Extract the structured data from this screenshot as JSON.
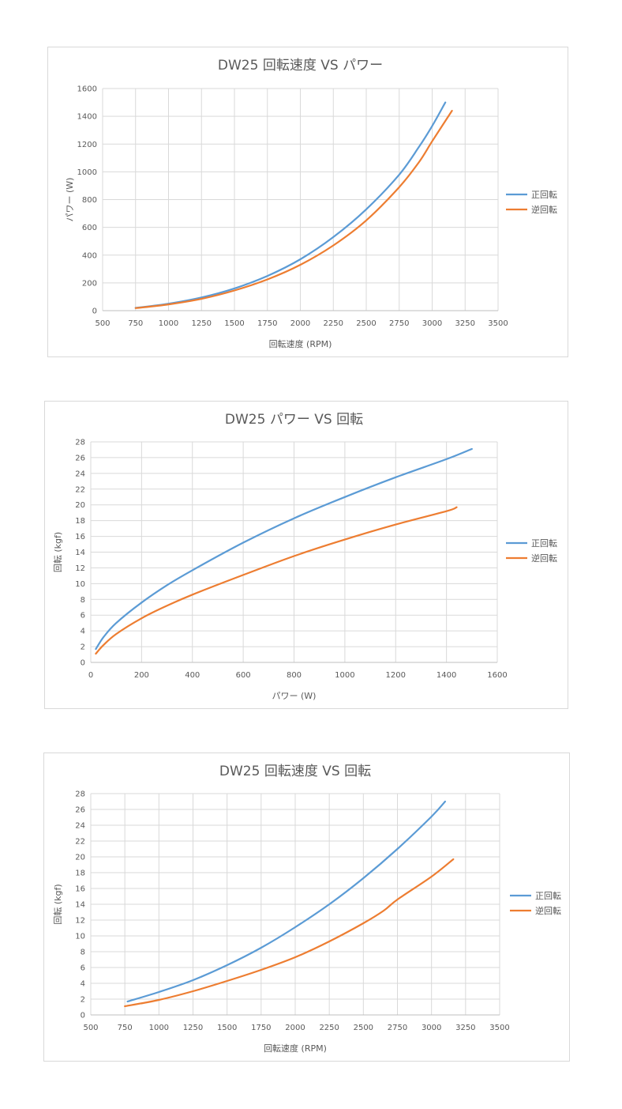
{
  "colors": {
    "series_blue": "#5B9BD5",
    "series_orange": "#ED7D31",
    "grid": "#d9d9d9",
    "text": "#595959"
  },
  "chart_data": [
    {
      "type": "line",
      "title": "DW25 回転速度 VS パワー",
      "xlabel": "回転速度 (RPM)",
      "ylabel": "パワー (W)",
      "xlim": [
        500,
        3500
      ],
      "ylim": [
        0,
        1600
      ],
      "xticks": [
        "500",
        "750",
        "1000",
        "1250",
        "1500",
        "1750",
        "2000",
        "2250",
        "2500",
        "2750",
        "3000",
        "3250",
        "3500"
      ],
      "yticks": [
        "0",
        "200",
        "400",
        "600",
        "800",
        "1000",
        "1200",
        "1400",
        "1600"
      ],
      "grid": true,
      "legend": "right",
      "series": [
        {
          "name": "正回転",
          "color": "#5B9BD5",
          "points": [
            [
              750,
              20
            ],
            [
              1000,
              50
            ],
            [
              1250,
              95
            ],
            [
              1500,
              160
            ],
            [
              1750,
              250
            ],
            [
              2000,
              370
            ],
            [
              2250,
              530
            ],
            [
              2500,
              730
            ],
            [
              2750,
              980
            ],
            [
              2900,
              1180
            ],
            [
              3000,
              1330
            ],
            [
              3100,
              1500
            ]
          ]
        },
        {
          "name": "逆回転",
          "color": "#ED7D31",
          "points": [
            [
              750,
              18
            ],
            [
              1000,
              45
            ],
            [
              1250,
              85
            ],
            [
              1500,
              145
            ],
            [
              1750,
              225
            ],
            [
              2000,
              330
            ],
            [
              2250,
              470
            ],
            [
              2500,
              650
            ],
            [
              2750,
              890
            ],
            [
              2900,
              1070
            ],
            [
              3000,
              1220
            ],
            [
              3150,
              1440
            ]
          ]
        }
      ]
    },
    {
      "type": "line",
      "title": "DW25 パワー VS 回転",
      "xlabel": "パワー (W)",
      "ylabel": "回転 (kgf)",
      "xlim": [
        0,
        1600
      ],
      "ylim": [
        0,
        28
      ],
      "xticks": [
        "0",
        "200",
        "400",
        "600",
        "800",
        "1000",
        "1200",
        "1400",
        "1600"
      ],
      "yticks": [
        "0",
        "2",
        "4",
        "6",
        "8",
        "10",
        "12",
        "14",
        "16",
        "18",
        "20",
        "22",
        "24",
        "26",
        "28"
      ],
      "grid": true,
      "legend": "right",
      "series": [
        {
          "name": "正回転",
          "color": "#5B9BD5",
          "points": [
            [
              20,
              1.7
            ],
            [
              50,
              3.2
            ],
            [
              100,
              5.0
            ],
            [
              200,
              7.6
            ],
            [
              300,
              9.8
            ],
            [
              400,
              11.7
            ],
            [
              600,
              15.2
            ],
            [
              800,
              18.3
            ],
            [
              1000,
              21.0
            ],
            [
              1200,
              23.5
            ],
            [
              1400,
              25.8
            ],
            [
              1500,
              27.1
            ]
          ]
        },
        {
          "name": "逆回転",
          "color": "#ED7D31",
          "points": [
            [
              20,
              1.1
            ],
            [
              50,
              2.2
            ],
            [
              100,
              3.6
            ],
            [
              200,
              5.6
            ],
            [
              300,
              7.2
            ],
            [
              400,
              8.6
            ],
            [
              600,
              11.1
            ],
            [
              800,
              13.5
            ],
            [
              1000,
              15.6
            ],
            [
              1200,
              17.5
            ],
            [
              1400,
              19.2
            ],
            [
              1440,
              19.7
            ]
          ]
        }
      ]
    },
    {
      "type": "line",
      "title": "DW25 回転速度 VS 回転",
      "xlabel": "回転速度 (RPM)",
      "ylabel": "回転 (kgf)",
      "xlim": [
        500,
        3500
      ],
      "ylim": [
        0,
        28
      ],
      "xticks": [
        "500",
        "750",
        "1000",
        "1250",
        "1500",
        "1750",
        "2000",
        "2250",
        "2500",
        "2750",
        "3000",
        "3250",
        "3500"
      ],
      "yticks": [
        "0",
        "2",
        "4",
        "6",
        "8",
        "10",
        "12",
        "14",
        "16",
        "18",
        "20",
        "22",
        "24",
        "26",
        "28"
      ],
      "grid": true,
      "legend": "right",
      "series": [
        {
          "name": "正回転",
          "color": "#5B9BD5",
          "points": [
            [
              770,
              1.7
            ],
            [
              1000,
              2.9
            ],
            [
              1250,
              4.4
            ],
            [
              1500,
              6.3
            ],
            [
              1750,
              8.5
            ],
            [
              2000,
              11.1
            ],
            [
              2250,
              14.0
            ],
            [
              2500,
              17.3
            ],
            [
              2750,
              21.0
            ],
            [
              3000,
              25.1
            ],
            [
              3100,
              27.0
            ]
          ]
        },
        {
          "name": "逆回転",
          "color": "#ED7D31",
          "points": [
            [
              750,
              1.1
            ],
            [
              1000,
              1.9
            ],
            [
              1250,
              3.0
            ],
            [
              1500,
              4.3
            ],
            [
              1750,
              5.7
            ],
            [
              2000,
              7.3
            ],
            [
              2250,
              9.3
            ],
            [
              2500,
              11.6
            ],
            [
              2650,
              13.2
            ],
            [
              2750,
              14.6
            ],
            [
              3000,
              17.5
            ],
            [
              3160,
              19.7
            ]
          ]
        }
      ]
    }
  ]
}
